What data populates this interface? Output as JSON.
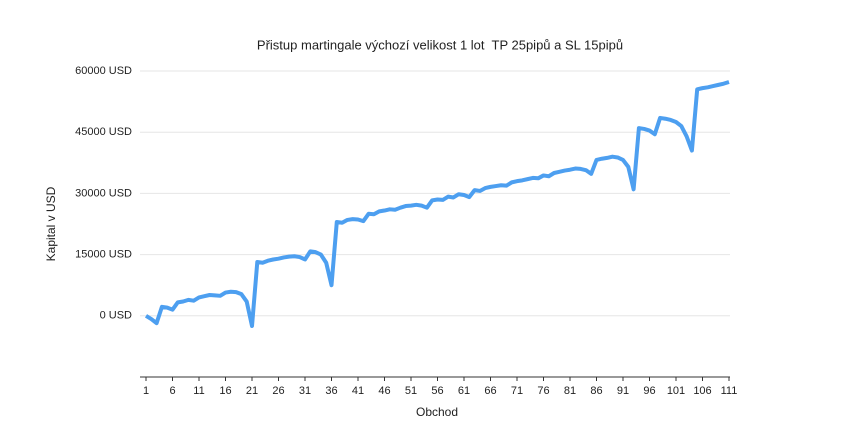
{
  "chart_data": {
    "type": "line",
    "title": "Přistup martingale výchozí velikost 1 lot  TP 25pipů a SL 15pipů",
    "x_label": "Obchod",
    "y_label": "Kapital v USD",
    "x": [
      1,
      2,
      3,
      4,
      5,
      6,
      7,
      8,
      9,
      10,
      11,
      12,
      13,
      14,
      15,
      16,
      17,
      18,
      19,
      20,
      21,
      22,
      23,
      24,
      25,
      26,
      27,
      28,
      29,
      30,
      31,
      32,
      33,
      34,
      35,
      36,
      37,
      38,
      39,
      40,
      41,
      42,
      43,
      44,
      45,
      46,
      47,
      48,
      49,
      50,
      51,
      52,
      53,
      54,
      55,
      56,
      57,
      58,
      59,
      60,
      61,
      62,
      63,
      64,
      65,
      66,
      67,
      68,
      69,
      70,
      71,
      72,
      73,
      74,
      75,
      76,
      77,
      78,
      79,
      80,
      81,
      82,
      83,
      84,
      85,
      86,
      87,
      88,
      89,
      90,
      91,
      92,
      93,
      94,
      95,
      96,
      97,
      98,
      99,
      100,
      101,
      102,
      103,
      104,
      105,
      106,
      107,
      108,
      109,
      110,
      111
    ],
    "series": [
      {
        "name": "Kapital v USD",
        "color": "#4d9ff0",
        "values": [
          0,
          -800,
          -1800,
          2200,
          2000,
          1500,
          3300,
          3500,
          3900,
          3700,
          4500,
          4800,
          5100,
          5000,
          4900,
          5700,
          5900,
          5800,
          5300,
          3500,
          -2500,
          13200,
          13000,
          13500,
          13800,
          14000,
          14300,
          14500,
          14600,
          14400,
          13800,
          15800,
          15600,
          15000,
          13000,
          7500,
          23000,
          22800,
          23500,
          23700,
          23600,
          23200,
          25000,
          24900,
          25600,
          25800,
          26100,
          26000,
          26500,
          26900,
          27000,
          27200,
          27000,
          26500,
          28300,
          28500,
          28400,
          29200,
          29000,
          29800,
          29600,
          29100,
          30800,
          30600,
          31300,
          31600,
          31800,
          32000,
          31900,
          32700,
          33000,
          33200,
          33500,
          33800,
          33700,
          34400,
          34200,
          35000,
          35300,
          35600,
          35800,
          36100,
          36000,
          35700,
          34800,
          38200,
          38500,
          38700,
          39000,
          38800,
          38200,
          36500,
          31000,
          46000,
          45800,
          45400,
          44500,
          48500,
          48300,
          48000,
          47500,
          46500,
          44000,
          40500,
          55500,
          55800,
          56000,
          56300,
          56600,
          56900,
          57300
        ]
      }
    ],
    "xlim": [
      1,
      111
    ],
    "xticks": [
      1,
      6,
      11,
      16,
      21,
      26,
      31,
      36,
      41,
      46,
      51,
      56,
      61,
      66,
      71,
      76,
      81,
      86,
      91,
      96,
      101,
      106,
      111
    ],
    "ylim": [
      -15000,
      60000
    ],
    "yticks": [
      {
        "value": 0,
        "label": "0 USD"
      },
      {
        "value": 15000,
        "label": "15000 USD"
      },
      {
        "value": 30000,
        "label": "30000 USD"
      },
      {
        "value": 45000,
        "label": "45000 USD"
      },
      {
        "value": 60000,
        "label": "60000 USD"
      }
    ],
    "grid": true
  }
}
